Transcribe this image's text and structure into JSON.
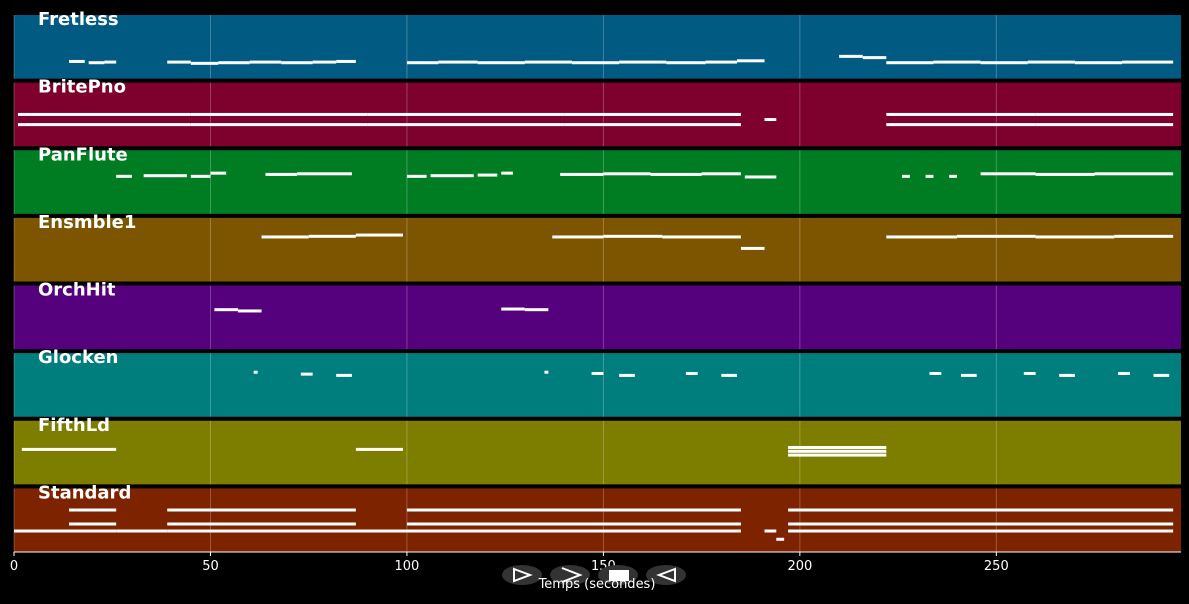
{
  "chart_data": {
    "type": "pianoroll",
    "xlabel": "Temps (secondes)",
    "xlim": [
      0,
      297
    ],
    "xticks": [
      0,
      50,
      100,
      150,
      200,
      250
    ],
    "pitchlim": [
      0,
      100
    ],
    "grid": true,
    "tracks": [
      {
        "name": "Fretless",
        "color": "#005a82",
        "notes": [
          [
            14,
            18,
            27
          ],
          [
            19,
            23,
            25
          ],
          [
            23,
            26,
            26
          ],
          [
            39,
            45,
            26
          ],
          [
            45,
            52,
            24
          ],
          [
            52,
            60,
            25
          ],
          [
            60,
            68,
            26
          ],
          [
            68,
            76,
            25
          ],
          [
            76,
            82,
            26
          ],
          [
            82,
            87,
            27
          ],
          [
            100,
            108,
            25
          ],
          [
            108,
            118,
            26
          ],
          [
            118,
            130,
            25
          ],
          [
            130,
            142,
            26
          ],
          [
            142,
            154,
            25
          ],
          [
            154,
            166,
            26
          ],
          [
            166,
            176,
            25
          ],
          [
            176,
            184,
            26
          ],
          [
            184,
            191,
            28
          ],
          [
            210,
            216,
            35
          ],
          [
            216,
            222,
            33
          ],
          [
            222,
            234,
            25
          ],
          [
            234,
            246,
            26
          ],
          [
            246,
            258,
            25
          ],
          [
            258,
            270,
            26
          ],
          [
            270,
            282,
            25
          ],
          [
            282,
            295,
            26
          ]
        ]
      },
      {
        "name": "BritePno",
        "color": "#7d002d",
        "notes": [
          [
            1,
            45,
            50
          ],
          [
            45,
            90,
            50
          ],
          [
            90,
            140,
            50
          ],
          [
            140,
            185,
            50
          ],
          [
            1,
            45,
            34
          ],
          [
            45,
            90,
            34
          ],
          [
            90,
            140,
            34
          ],
          [
            140,
            185,
            34
          ],
          [
            191,
            194,
            42
          ],
          [
            222,
            260,
            50
          ],
          [
            260,
            295,
            50
          ],
          [
            222,
            260,
            34
          ],
          [
            260,
            295,
            34
          ]
        ]
      },
      {
        "name": "PanFlute",
        "color": "#007d23",
        "notes": [
          [
            26,
            30,
            59
          ],
          [
            33,
            44,
            60
          ],
          [
            45,
            50,
            59
          ],
          [
            50,
            54,
            64
          ],
          [
            64,
            72,
            62
          ],
          [
            72,
            86,
            63
          ],
          [
            100,
            105,
            59
          ],
          [
            106,
            117,
            60
          ],
          [
            118,
            123,
            61
          ],
          [
            124,
            127,
            64
          ],
          [
            139,
            150,
            62
          ],
          [
            150,
            162,
            63
          ],
          [
            162,
            175,
            62
          ],
          [
            175,
            185,
            63
          ],
          [
            186,
            194,
            58
          ],
          [
            226,
            228,
            59
          ],
          [
            232,
            234,
            59
          ],
          [
            238,
            240,
            59
          ],
          [
            246,
            260,
            63
          ],
          [
            260,
            275,
            62
          ],
          [
            275,
            295,
            63
          ]
        ]
      },
      {
        "name": "Ensmble1",
        "color": "#7d5500",
        "notes": [
          [
            63,
            75,
            70
          ],
          [
            75,
            87,
            71
          ],
          [
            87,
            99,
            73
          ],
          [
            137,
            150,
            70
          ],
          [
            150,
            165,
            71
          ],
          [
            165,
            185,
            70
          ],
          [
            185,
            191,
            52
          ],
          [
            222,
            240,
            70
          ],
          [
            240,
            260,
            71
          ],
          [
            260,
            280,
            70
          ],
          [
            280,
            295,
            71
          ]
        ]
      },
      {
        "name": "OrchHit",
        "color": "#55007d",
        "notes": [
          [
            51,
            57,
            62
          ],
          [
            57,
            63,
            60
          ],
          [
            124,
            130,
            63
          ],
          [
            130,
            136,
            62
          ]
        ]
      },
      {
        "name": "Glocken",
        "color": "#007d7d",
        "notes": [
          [
            61,
            62,
            70
          ],
          [
            73,
            76,
            67
          ],
          [
            82,
            86,
            65
          ],
          [
            135,
            136,
            70
          ],
          [
            147,
            150,
            68
          ],
          [
            154,
            158,
            65
          ],
          [
            171,
            174,
            68
          ],
          [
            180,
            184,
            65
          ],
          [
            233,
            236,
            68
          ],
          [
            241,
            245,
            65
          ],
          [
            257,
            260,
            68
          ],
          [
            266,
            270,
            65
          ],
          [
            281,
            284,
            68
          ],
          [
            290,
            294,
            65
          ]
        ]
      },
      {
        "name": "FifthLd",
        "color": "#7d7d00",
        "notes": [
          [
            2,
            26,
            55
          ],
          [
            87,
            99,
            55
          ],
          [
            197,
            222,
            58
          ],
          [
            197,
            222,
            52
          ],
          [
            197,
            222,
            46
          ]
        ]
      },
      {
        "name": "Standard",
        "color": "#7d2300",
        "notes": [
          [
            0,
            26,
            33
          ],
          [
            14,
            26,
            66
          ],
          [
            14,
            26,
            44
          ],
          [
            26,
            39,
            33
          ],
          [
            39,
            87,
            66
          ],
          [
            39,
            87,
            44
          ],
          [
            39,
            100,
            33
          ],
          [
            100,
            185,
            66
          ],
          [
            100,
            185,
            44
          ],
          [
            100,
            185,
            33
          ],
          [
            191,
            194,
            33
          ],
          [
            194,
            196,
            20
          ],
          [
            197,
            295,
            66
          ],
          [
            197,
            295,
            44
          ],
          [
            197,
            295,
            33
          ]
        ]
      }
    ]
  }
}
